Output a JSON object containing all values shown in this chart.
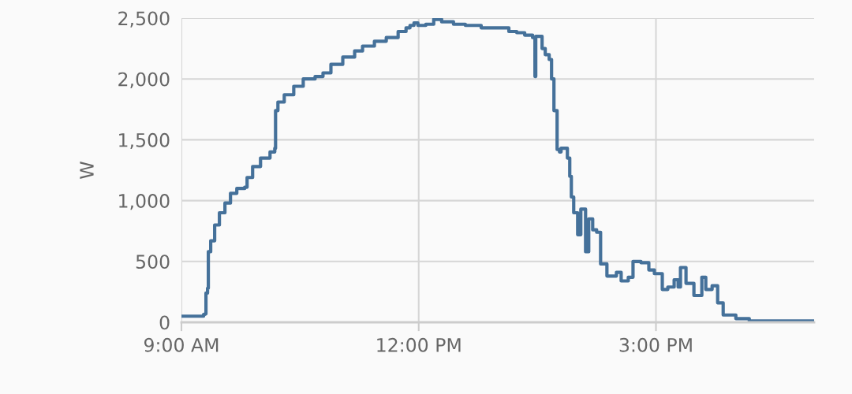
{
  "chart_data": {
    "type": "step",
    "ylabel": "W",
    "x": [
      9.0,
      9.28,
      9.3,
      9.31,
      9.33,
      9.34,
      9.37,
      9.42,
      9.48,
      9.55,
      9.62,
      9.7,
      9.8,
      9.83,
      9.9,
      10.0,
      10.12,
      10.18,
      10.19,
      10.22,
      10.3,
      10.42,
      10.54,
      10.69,
      10.79,
      10.89,
      11.04,
      11.19,
      11.29,
      11.44,
      11.59,
      11.74,
      11.84,
      11.89,
      11.94,
      11.99,
      12.09,
      12.19,
      12.29,
      12.44,
      12.59,
      12.79,
      12.99,
      13.14,
      13.24,
      13.34,
      13.44,
      13.47,
      13.48,
      13.56,
      13.6,
      13.65,
      13.68,
      13.71,
      13.75,
      13.78,
      13.8,
      13.88,
      13.91,
      13.93,
      13.96,
      14.01,
      14.05,
      14.11,
      14.15,
      14.2,
      14.25,
      14.3,
      14.38,
      14.5,
      14.56,
      14.65,
      14.71,
      14.81,
      14.91,
      14.98,
      15.08,
      15.15,
      15.23,
      15.28,
      15.31,
      15.38,
      15.48,
      15.58,
      15.63,
      15.71,
      15.78,
      15.85,
      16.01,
      16.18,
      16.48,
      16.57,
      17.0
    ],
    "series": [
      {
        "color": "#45719a",
        "values": [
          50,
          65,
          70,
          240,
          280,
          580,
          670,
          800,
          900,
          980,
          1060,
          1100,
          1110,
          1190,
          1280,
          1350,
          1400,
          1430,
          1740,
          1810,
          1870,
          1940,
          2000,
          2020,
          2050,
          2120,
          2180,
          2230,
          2270,
          2310,
          2340,
          2390,
          2420,
          2440,
          2460,
          2440,
          2450,
          2490,
          2470,
          2450,
          2440,
          2420,
          2420,
          2390,
          2380,
          2360,
          2340,
          2020,
          2350,
          2250,
          2200,
          2160,
          2000,
          1740,
          1420,
          1400,
          1430,
          1350,
          1200,
          1030,
          900,
          720,
          930,
          580,
          850,
          760,
          740,
          480,
          380,
          410,
          340,
          370,
          500,
          490,
          430,
          400,
          270,
          290,
          350,
          290,
          450,
          320,
          220,
          370,
          270,
          300,
          160,
          60,
          30,
          10,
          10,
          10,
          0
        ]
      }
    ],
    "xlim": [
      9,
      17
    ],
    "xticks": [
      {
        "value": 9,
        "label": "9:00 AM"
      },
      {
        "value": 12,
        "label": "12:00 PM"
      },
      {
        "value": 15,
        "label": "3:00 PM"
      }
    ],
    "ylim": [
      0,
      2500
    ],
    "yticks": [
      {
        "value": 0,
        "label": "0"
      },
      {
        "value": 500,
        "label": "500"
      },
      {
        "value": 1000,
        "label": "1,000"
      },
      {
        "value": 1500,
        "label": "1,500"
      },
      {
        "value": 2000,
        "label": "2,000"
      },
      {
        "value": 2500,
        "label": "2,500"
      }
    ],
    "grid": true,
    "legend": false
  }
}
